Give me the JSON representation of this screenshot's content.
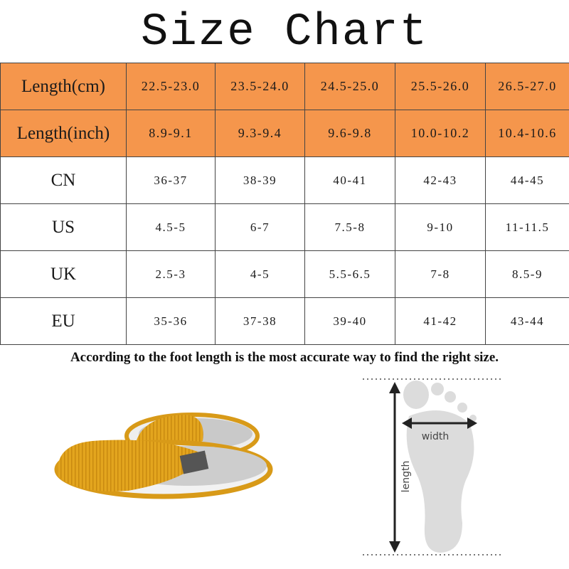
{
  "title": "Size Chart",
  "colors": {
    "header_fill": "#f5964c",
    "border": "#444444",
    "slipper": "#e0a21c",
    "foot": "#dcdcdc"
  },
  "table": {
    "rows": [
      {
        "label": "Length(cm)",
        "values": [
          "22.5-23.0",
          "23.5-24.0",
          "24.5-25.0",
          "25.5-26.0",
          "26.5-27.0"
        ],
        "highlight": true
      },
      {
        "label": "Length(inch)",
        "values": [
          "8.9-9.1",
          "9.3-9.4",
          "9.6-9.8",
          "10.0-10.2",
          "10.4-10.6"
        ],
        "highlight": true
      },
      {
        "label": "CN",
        "values": [
          "36-37",
          "38-39",
          "40-41",
          "42-43",
          "44-45"
        ],
        "highlight": false
      },
      {
        "label": "US",
        "values": [
          "4.5-5",
          "6-7",
          "7.5-8",
          "9-10",
          "11-11.5"
        ],
        "highlight": false
      },
      {
        "label": "UK",
        "values": [
          "2.5-3",
          "4-5",
          "5.5-6.5",
          "7-8",
          "8.5-9"
        ],
        "highlight": false
      },
      {
        "label": "EU",
        "values": [
          "35-36",
          "37-38",
          "39-40",
          "41-42",
          "43-44"
        ],
        "highlight": false
      }
    ]
  },
  "note": "According to the foot length is the most  accurate way to find the right size.",
  "diagram": {
    "width_label": "width",
    "length_label": "length"
  }
}
